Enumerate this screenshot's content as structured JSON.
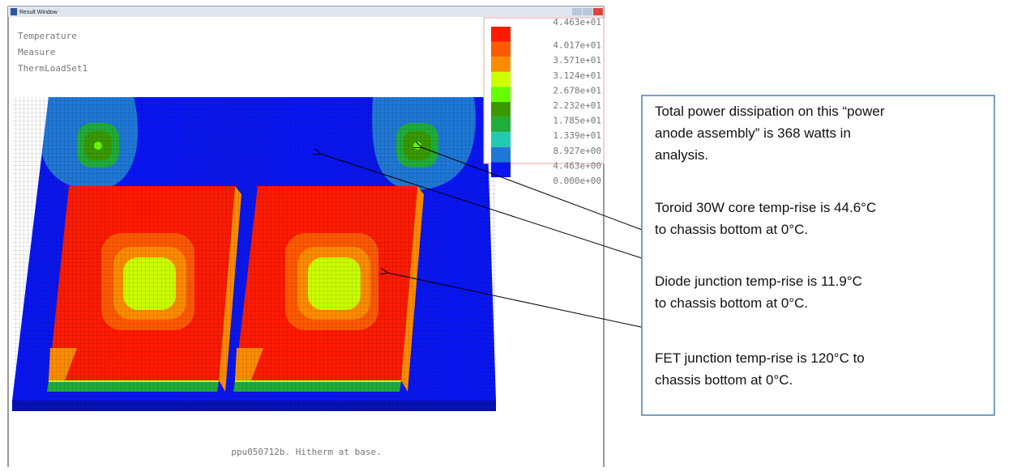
{
  "window": {
    "title": "Result Window",
    "info_lines": [
      "Temperature",
      "Measure",
      "ThermLoadSet1"
    ],
    "footer": "ppu050712b. Hitherm at base."
  },
  "legend": {
    "labels": [
      "4.463e+01",
      "4.017e+01",
      "3.571e+01",
      "3.124e+01",
      "2.678e+01",
      "2.232e+01",
      "1.785e+01",
      "1.339e+01",
      "8.927e+00",
      "4.463e+00",
      "0.000e+00"
    ],
    "colors": [
      "#ff1a00",
      "#ff5a00",
      "#ff8c00",
      "#ccff00",
      "#66ff00",
      "#3a9a00",
      "#1fae3a",
      "#22c9b0",
      "#1f78d6",
      "#0a16f0"
    ]
  },
  "notes": [
    [
      "Total power dissipation on this “power",
      "anode assembly” is 368 watts in",
      "analysis."
    ],
    [
      "Toroid 30W core temp-rise is 44.6°C",
      "to chassis bottom at 0°C."
    ],
    [
      "Diode junction temp-rise is 11.9°C",
      "to chassis bottom at 0°C."
    ],
    [
      "FET junction temp-rise is 120°C to",
      "chassis bottom at 0°C."
    ]
  ]
}
